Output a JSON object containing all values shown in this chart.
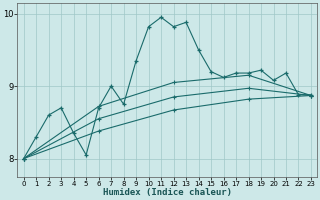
{
  "xlabel": "Humidex (Indice chaleur)",
  "background_color": "#cde8e8",
  "grid_color": "#b8d8d8",
  "line_color": "#1a6b6b",
  "xlim": [
    -0.5,
    23.5
  ],
  "ylim": [
    7.75,
    10.15
  ],
  "yticks": [
    8,
    9,
    10
  ],
  "xticks": [
    0,
    1,
    2,
    3,
    4,
    5,
    6,
    7,
    8,
    9,
    10,
    11,
    12,
    13,
    14,
    15,
    16,
    17,
    18,
    19,
    20,
    21,
    22,
    23
  ],
  "series1_x": [
    0,
    1,
    2,
    3,
    4,
    5,
    6,
    7,
    8,
    9,
    10,
    11,
    12,
    13,
    14,
    15,
    16,
    17,
    18,
    19,
    20,
    21,
    22,
    23
  ],
  "series1_y": [
    8.0,
    8.3,
    8.6,
    8.7,
    8.35,
    8.05,
    8.7,
    9.0,
    8.75,
    9.35,
    9.82,
    9.95,
    9.82,
    9.88,
    9.5,
    9.2,
    9.12,
    9.18,
    9.18,
    9.22,
    9.08,
    9.18,
    8.88,
    8.88
  ],
  "series2_x": [
    0,
    6,
    12,
    18,
    23
  ],
  "series2_y": [
    8.0,
    8.72,
    9.05,
    9.15,
    8.87
  ],
  "series3_x": [
    0,
    6,
    12,
    18,
    23
  ],
  "series3_y": [
    8.0,
    8.55,
    8.85,
    8.97,
    8.87
  ],
  "series4_x": [
    0,
    6,
    12,
    18,
    23
  ],
  "series4_y": [
    8.0,
    8.38,
    8.67,
    8.82,
    8.87
  ]
}
